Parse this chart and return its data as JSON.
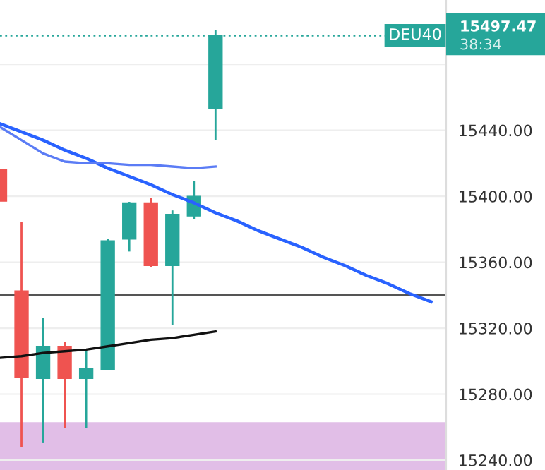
{
  "chart_data": {
    "type": "candlestick",
    "categories": [
      null,
      null,
      null,
      null,
      null,
      null,
      null,
      null,
      null,
      null,
      null,
      null,
      null,
      null,
      null,
      null,
      null,
      null,
      null,
      null,
      null
    ],
    "ohlc": [
      [
        15416,
        15416,
        15397,
        15397
      ],
      [
        15342.6,
        15384.6,
        15247.8,
        15290.4
      ],
      [
        15289.5,
        15326,
        15250.3,
        15309
      ],
      [
        15309,
        15311.8,
        15259.5,
        15289.5
      ],
      [
        15289.5,
        15307.5,
        15259.5,
        15295.5
      ],
      [
        15294.6,
        15374,
        15294.6,
        15373
      ],
      [
        15374,
        15396.6,
        15366.5,
        15396
      ],
      [
        15396,
        15399,
        15357,
        15358
      ],
      [
        15358,
        15391.4,
        15322,
        15389
      ],
      [
        15388,
        15409.4,
        15386.3,
        15400
      ],
      [
        15453,
        15501,
        15434,
        15497.47
      ],
      null,
      null,
      null,
      null,
      null,
      null,
      null,
      null,
      null,
      null
    ],
    "colors": [
      "#ef5350",
      "#ef5350",
      "#26a69a",
      "#ef5350",
      "#26a69a",
      "#26a69a",
      "#26a69a",
      "#ef5350",
      "#26a69a",
      "#26a69a",
      "#26a69a",
      null,
      null,
      null,
      null,
      null,
      null,
      null,
      null,
      null,
      null
    ],
    "series": [
      {
        "type": "line",
        "color": "#2962ff",
        "values": [
          15444,
          15439,
          15434,
          15428,
          15423,
          15417,
          15412,
          15407,
          15401,
          15396,
          15390,
          15385,
          15379,
          15374,
          15369,
          15363,
          15358,
          15352,
          15347,
          15341,
          15336
        ]
      },
      {
        "type": "line",
        "color": "#5b7cf5",
        "values": [
          15442,
          15434,
          15426,
          15421,
          15420,
          15420,
          15419,
          15419,
          15418,
          15417,
          15418,
          null,
          null,
          null,
          null,
          null,
          null,
          null,
          null,
          null,
          null
        ]
      },
      {
        "type": "line",
        "color": "#111111",
        "values": [
          15302,
          15303,
          15305,
          15306,
          15307,
          15309,
          15311,
          15313,
          15314,
          15316,
          15318,
          null,
          null,
          null,
          null,
          null,
          null,
          null,
          null,
          null,
          null
        ]
      }
    ],
    "ref_lines": [
      {
        "axis": "y",
        "value": 15340,
        "color": "#555555",
        "line_style": "solid"
      },
      {
        "axis": "y",
        "value": 15497.47,
        "label": "DEU40",
        "color": "#26a69a",
        "line_style": "dotted"
      }
    ],
    "bands": [
      {
        "axis": "y",
        "from": 15234,
        "to": 15263,
        "color": "#e1bee7"
      }
    ],
    "annotations": [
      "15497.47",
      "38:34"
    ],
    "ylim": [
      15234,
      15519
    ],
    "yticks": [
      {
        "value": 15240,
        "label": "15240.00"
      },
      {
        "value": 15280,
        "label": "15280.00"
      },
      {
        "value": 15320,
        "label": "15320.00"
      },
      {
        "value": 15360,
        "label": "15360.00"
      },
      {
        "value": 15400,
        "label": "15400.00"
      },
      {
        "value": 15440,
        "label": "15440.00"
      },
      {
        "value": 15480,
        "label": null
      }
    ],
    "grid": "y"
  }
}
